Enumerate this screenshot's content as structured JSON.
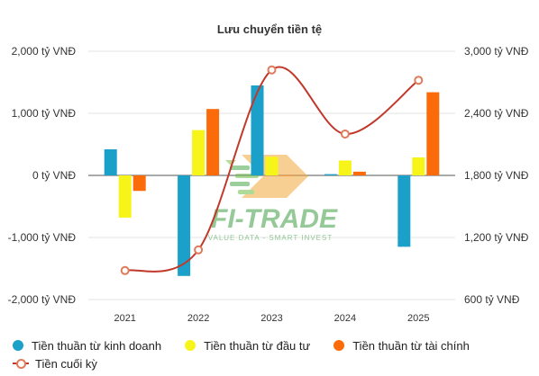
{
  "chart_data": {
    "type": "bar",
    "title": "Lưu chuyển tiền tệ",
    "categories": [
      "2021",
      "2022",
      "2023",
      "2024",
      "2025"
    ],
    "left_axis": {
      "ticks": [
        "2,000 tỷ VNĐ",
        "1,000 tỷ VNĐ",
        "0 tỷ VNĐ",
        "-1,000 tỷ VNĐ",
        "-2,000 tỷ VNĐ"
      ],
      "tick_values": [
        2000,
        1000,
        0,
        -1000,
        -2000
      ],
      "ylim": [
        -2000,
        2000
      ]
    },
    "right_axis": {
      "ticks": [
        "3,000 tỷ VNĐ",
        "2,400 tỷ VNĐ",
        "1,800 tỷ VNĐ",
        "1,200 tỷ VNĐ",
        "600 tỷ VNĐ"
      ],
      "tick_values": [
        3000,
        2400,
        1800,
        1200,
        600
      ],
      "ylim": [
        600,
        3000
      ]
    },
    "series": [
      {
        "name": "Tiền thuần từ kinh doanh",
        "type": "bar",
        "axis": "left",
        "color": "#1ba1c9",
        "values": [
          420,
          -1620,
          1450,
          20,
          -1150
        ]
      },
      {
        "name": "Tiền thuần từ đầu tư",
        "type": "bar",
        "axis": "left",
        "color": "#f7f41a",
        "values": [
          -680,
          730,
          300,
          240,
          290
        ]
      },
      {
        "name": "Tiền thuần từ tài chính",
        "type": "bar",
        "axis": "left",
        "color": "#fb6b0a",
        "values": [
          -250,
          1070,
          0,
          60,
          1340
        ]
      },
      {
        "name": "Tiền cuối kỳ",
        "type": "line",
        "axis": "right",
        "color": "#c0392b",
        "values": [
          880,
          1080,
          2820,
          2200,
          2720
        ]
      }
    ],
    "grid": true,
    "legend_position": "bottom-left"
  },
  "watermark": {
    "logo_text": "FI-TRADE",
    "tagline": "VALUE DATA - SMART INVEST"
  }
}
